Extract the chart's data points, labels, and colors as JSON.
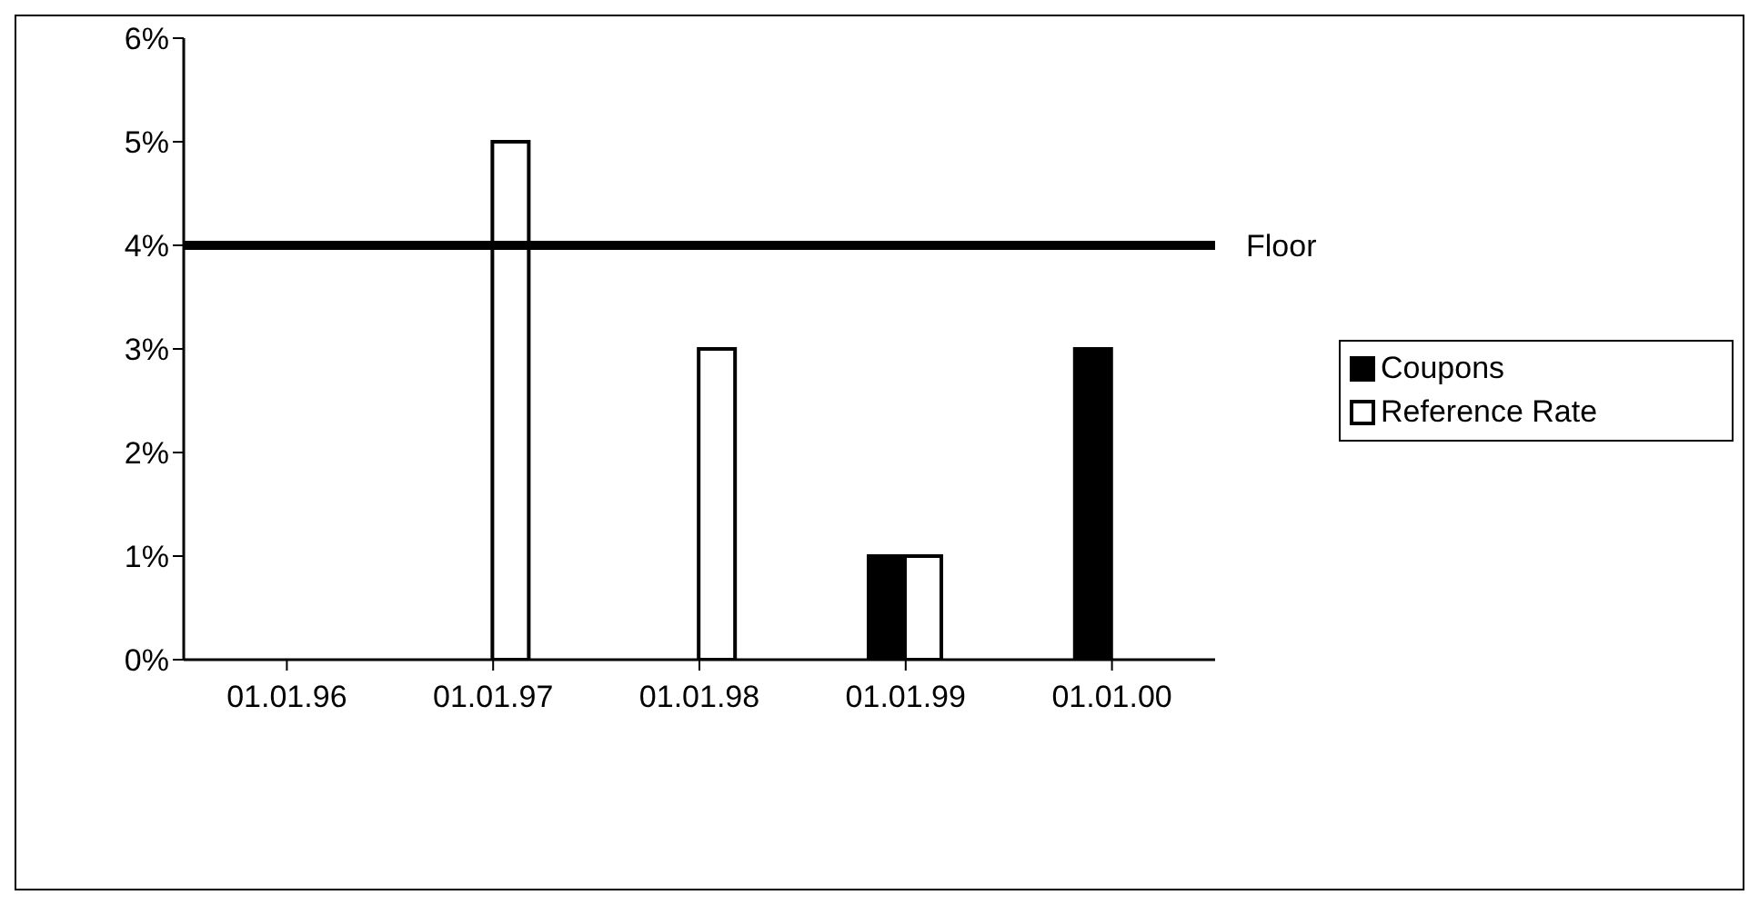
{
  "chart_data": {
    "type": "bar",
    "categories": [
      "01.01.96",
      "01.01.97",
      "01.01.98",
      "01.01.99",
      "01.01.00"
    ],
    "series": [
      {
        "name": "Coupons",
        "color": "#000000",
        "values": [
          null,
          null,
          null,
          1,
          3
        ]
      },
      {
        "name": "Reference Rate",
        "color": "#ffffff",
        "values": [
          null,
          5,
          3,
          1,
          null
        ]
      }
    ],
    "ylim": [
      0,
      6
    ],
    "yticks": [
      {
        "value": 0,
        "label": "0%"
      },
      {
        "value": 1,
        "label": "1%"
      },
      {
        "value": 2,
        "label": "2%"
      },
      {
        "value": 3,
        "label": "3%"
      },
      {
        "value": 4,
        "label": "4%"
      },
      {
        "value": 5,
        "label": "5%"
      },
      {
        "value": 6,
        "label": "6%"
      }
    ],
    "ref_lines": [
      {
        "axis": "y",
        "value": 4,
        "label": "Floor",
        "color": "#000000"
      }
    ],
    "grid": false,
    "legend": "right"
  }
}
